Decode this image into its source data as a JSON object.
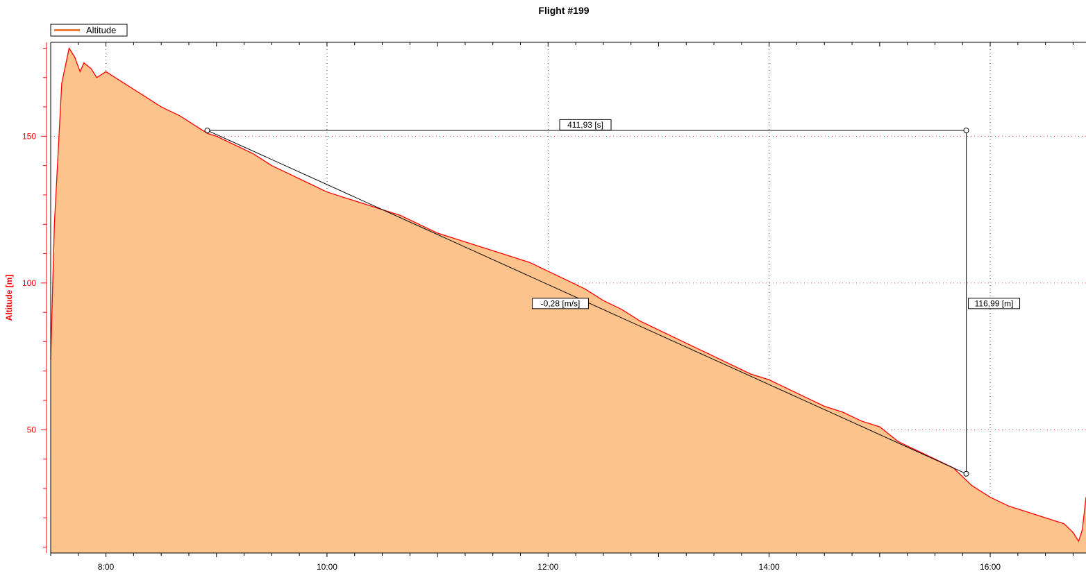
{
  "chart_data": {
    "type": "area",
    "title": "Flight #199",
    "xlabel": "",
    "ylabel": "Altitude [m]",
    "legend": {
      "placement": "top-left",
      "entries": [
        "Altitude"
      ]
    },
    "grid": true,
    "xlim": [
      "7:30",
      "16:52"
    ],
    "ylim": [
      8,
      182
    ],
    "x_ticks": [
      "8:00",
      "10:00",
      "12:00",
      "14:00",
      "16:00"
    ],
    "y_ticks": [
      50,
      100,
      150
    ],
    "series": [
      {
        "name": "Altitude",
        "color": "#ff0000",
        "fill": "#fcc38d",
        "x": [
          "7:30",
          "7:32",
          "7:36",
          "7:40",
          "7:43",
          "7:46",
          "7:48",
          "7:52",
          "7:55",
          "8:00",
          "8:05",
          "8:10",
          "8:20",
          "8:30",
          "8:40",
          "8:50",
          "8:55",
          "9:00",
          "9:10",
          "9:20",
          "9:30",
          "9:40",
          "9:50",
          "10:00",
          "10:10",
          "10:20",
          "10:30",
          "10:40",
          "10:50",
          "11:00",
          "11:10",
          "11:20",
          "11:30",
          "11:40",
          "11:50",
          "12:00",
          "12:10",
          "12:20",
          "12:30",
          "12:40",
          "12:50",
          "13:00",
          "13:10",
          "13:20",
          "13:30",
          "13:40",
          "13:50",
          "14:00",
          "14:10",
          "14:20",
          "14:30",
          "14:40",
          "14:50",
          "15:00",
          "15:10",
          "15:20",
          "15:30",
          "15:40",
          "15:45",
          "15:50",
          "16:00",
          "16:10",
          "16:20",
          "16:30",
          "16:40",
          "16:45",
          "16:48",
          "16:50",
          "16:52"
        ],
        "values": [
          74,
          120,
          168,
          180,
          177,
          172,
          175,
          173,
          170,
          172,
          170,
          168,
          164,
          160,
          157,
          153,
          151,
          150,
          147,
          144,
          140,
          137,
          134,
          131,
          129,
          127,
          125,
          123,
          120,
          117,
          115,
          113,
          111,
          109,
          107,
          104,
          101,
          98,
          94,
          91,
          87,
          84,
          81,
          78,
          75,
          72,
          69,
          67,
          64,
          61,
          58,
          56,
          53,
          51,
          46,
          43,
          40,
          37,
          34,
          31,
          27,
          24,
          22,
          20,
          18,
          15,
          12,
          16,
          27
        ]
      }
    ],
    "annotations": {
      "duration": "411,93 [s]",
      "slope": "-0,28 [m/s]",
      "height": "116,99 [m]",
      "start": {
        "x": "8:55",
        "y": 152
      },
      "end": {
        "x": "15:47",
        "y": 35
      }
    }
  }
}
